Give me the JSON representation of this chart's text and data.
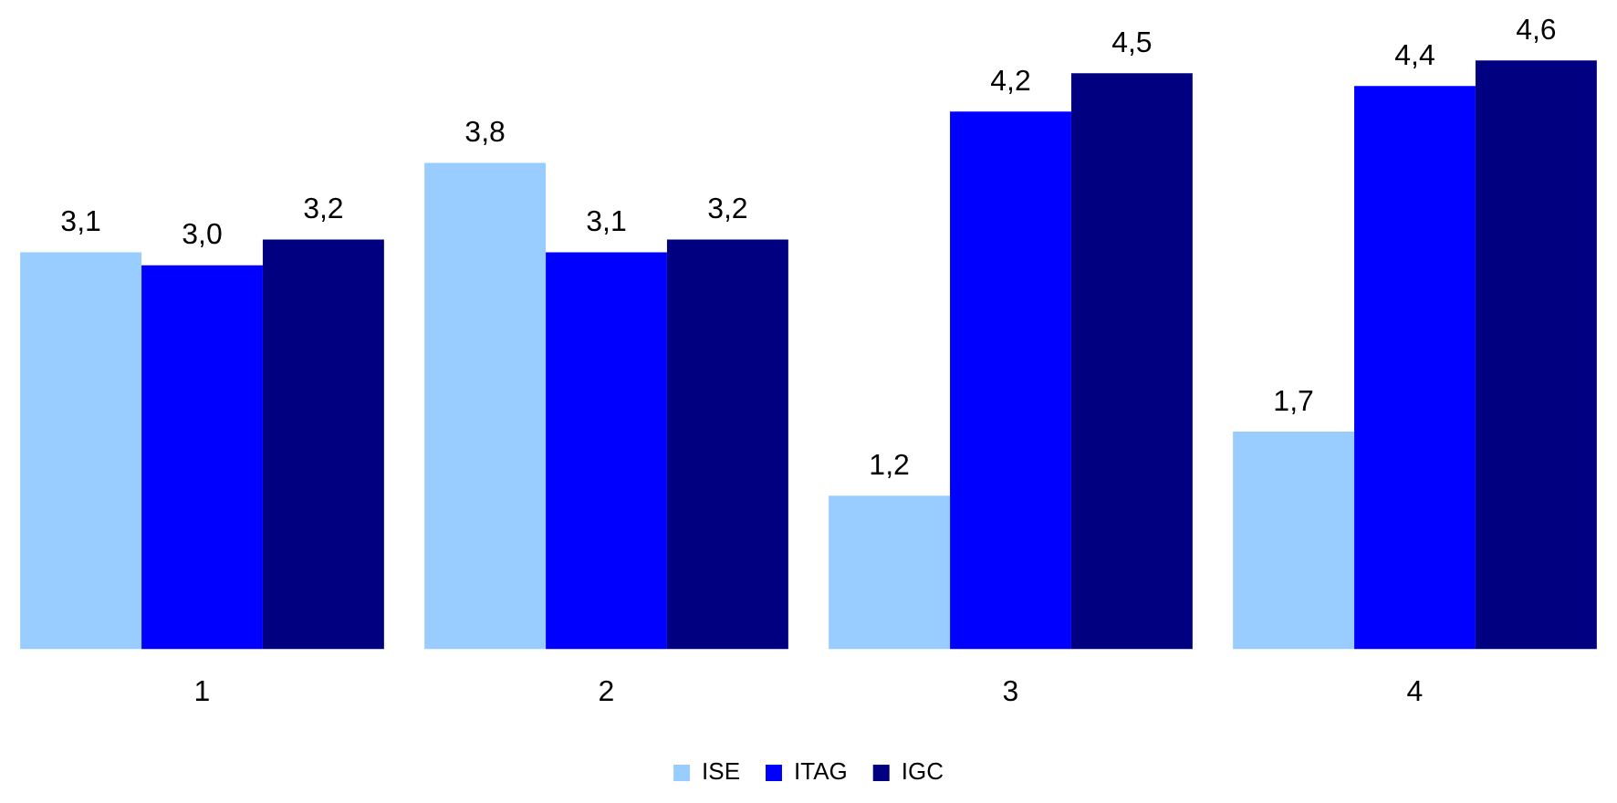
{
  "chart_data": {
    "type": "bar",
    "categories": [
      "1",
      "2",
      "3",
      "4"
    ],
    "series": [
      {
        "name": "ISE",
        "color": "#99ccff",
        "values": [
          3.1,
          3.8,
          1.2,
          1.7
        ],
        "value_labels": [
          "3,1",
          "3,8",
          "1,2",
          "1,7"
        ]
      },
      {
        "name": "ITAG",
        "color": "#0000ff",
        "values": [
          3.0,
          3.1,
          4.2,
          4.4
        ],
        "value_labels": [
          "3,0",
          "3,1",
          "4,2",
          "4,4"
        ]
      },
      {
        "name": "IGC",
        "color": "#000080",
        "values": [
          3.2,
          3.2,
          4.5,
          4.6
        ],
        "value_labels": [
          "3,2",
          "3,2",
          "4,5",
          "4,6"
        ]
      }
    ],
    "legend": "bottom",
    "grid": false
  }
}
